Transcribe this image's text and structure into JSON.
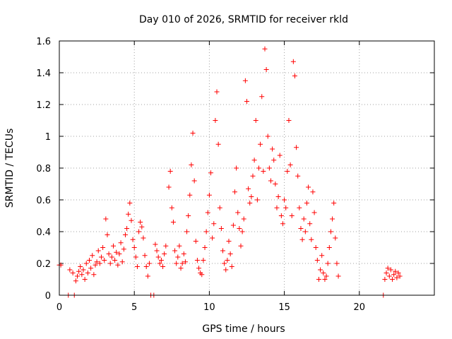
{
  "chart_data": {
    "type": "scatter",
    "title": "Day 010 of 2026, SRMTID for receiver rkld",
    "xlabel": "GPS time / hours",
    "ylabel": "SRMTID / TECUs",
    "xlim": [
      0,
      25
    ],
    "ylim": [
      0,
      1.6
    ],
    "xticks": [
      0,
      5,
      10,
      15,
      20
    ],
    "xtick_labels": [
      "0",
      "5",
      "10",
      "15",
      "20"
    ],
    "yticks": [
      0,
      0.2,
      0.4,
      0.6,
      0.8,
      1,
      1.2,
      1.4,
      1.6
    ],
    "ytick_labels": [
      "0",
      "0.2",
      "0.4",
      "0.6",
      "0.8",
      "1",
      "1.2",
      "1.4",
      "1.6"
    ],
    "grid": true,
    "marker": "+",
    "color": "#ff0000",
    "series": [
      {
        "name": "SRMTID",
        "points": [
          [
            0.0,
            0.19
          ],
          [
            0.1,
            0.19
          ],
          [
            0.6,
            0.0
          ],
          [
            0.7,
            0.16
          ],
          [
            0.9,
            0.14
          ],
          [
            1.0,
            0.0
          ],
          [
            1.1,
            0.09
          ],
          [
            1.2,
            0.12
          ],
          [
            1.3,
            0.15
          ],
          [
            1.4,
            0.18
          ],
          [
            1.5,
            0.13
          ],
          [
            1.6,
            0.16
          ],
          [
            1.7,
            0.1
          ],
          [
            1.8,
            0.2
          ],
          [
            1.9,
            0.14
          ],
          [
            2.0,
            0.22
          ],
          [
            2.1,
            0.17
          ],
          [
            2.2,
            0.25
          ],
          [
            2.3,
            0.13
          ],
          [
            2.4,
            0.19
          ],
          [
            2.5,
            0.21
          ],
          [
            2.6,
            0.28
          ],
          [
            2.7,
            0.2
          ],
          [
            2.8,
            0.24
          ],
          [
            2.9,
            0.3
          ],
          [
            3.0,
            0.22
          ],
          [
            3.1,
            0.48
          ],
          [
            3.2,
            0.38
          ],
          [
            3.3,
            0.26
          ],
          [
            3.4,
            0.2
          ],
          [
            3.5,
            0.24
          ],
          [
            3.6,
            0.31
          ],
          [
            3.7,
            0.22
          ],
          [
            3.8,
            0.27
          ],
          [
            3.9,
            0.19
          ],
          [
            4.0,
            0.26
          ],
          [
            4.1,
            0.33
          ],
          [
            4.2,
            0.21
          ],
          [
            4.3,
            0.29
          ],
          [
            4.4,
            0.38
          ],
          [
            4.5,
            0.42
          ],
          [
            4.6,
            0.51
          ],
          [
            4.7,
            0.58
          ],
          [
            4.8,
            0.47
          ],
          [
            4.9,
            0.35
          ],
          [
            5.0,
            0.3
          ],
          [
            5.1,
            0.24
          ],
          [
            5.2,
            0.18
          ],
          [
            5.3,
            0.4
          ],
          [
            5.4,
            0.46
          ],
          [
            5.5,
            0.43
          ],
          [
            5.6,
            0.36
          ],
          [
            5.7,
            0.25
          ],
          [
            5.8,
            0.18
          ],
          [
            5.9,
            0.12
          ],
          [
            6.0,
            0.2
          ],
          [
            6.1,
            0.0
          ],
          [
            6.3,
            0.0
          ],
          [
            6.4,
            0.32
          ],
          [
            6.5,
            0.28
          ],
          [
            6.6,
            0.24
          ],
          [
            6.7,
            0.2
          ],
          [
            6.8,
            0.22
          ],
          [
            6.9,
            0.18
          ],
          [
            7.0,
            0.26
          ],
          [
            7.1,
            0.31
          ],
          [
            7.3,
            0.68
          ],
          [
            7.4,
            0.78
          ],
          [
            7.5,
            0.55
          ],
          [
            7.6,
            0.46
          ],
          [
            7.7,
            0.28
          ],
          [
            7.8,
            0.2
          ],
          [
            7.9,
            0.24
          ],
          [
            8.0,
            0.31
          ],
          [
            8.1,
            0.17
          ],
          [
            8.2,
            0.2
          ],
          [
            8.3,
            0.26
          ],
          [
            8.4,
            0.21
          ],
          [
            8.5,
            0.4
          ],
          [
            8.6,
            0.5
          ],
          [
            8.7,
            0.63
          ],
          [
            8.8,
            0.82
          ],
          [
            8.9,
            1.02
          ],
          [
            9.0,
            0.72
          ],
          [
            9.1,
            0.34
          ],
          [
            9.2,
            0.22
          ],
          [
            9.3,
            0.17
          ],
          [
            9.4,
            0.14
          ],
          [
            9.5,
            0.13
          ],
          [
            9.6,
            0.22
          ],
          [
            9.7,
            0.3
          ],
          [
            9.8,
            0.4
          ],
          [
            9.9,
            0.52
          ],
          [
            10.0,
            0.63
          ],
          [
            10.1,
            0.77
          ],
          [
            10.2,
            0.36
          ],
          [
            10.3,
            0.45
          ],
          [
            10.4,
            1.1
          ],
          [
            10.5,
            1.28
          ],
          [
            10.6,
            0.95
          ],
          [
            10.7,
            0.55
          ],
          [
            10.8,
            0.42
          ],
          [
            10.9,
            0.28
          ],
          [
            11.0,
            0.2
          ],
          [
            11.1,
            0.16
          ],
          [
            11.2,
            0.22
          ],
          [
            11.3,
            0.34
          ],
          [
            11.4,
            0.26
          ],
          [
            11.5,
            0.18
          ],
          [
            11.6,
            0.44
          ],
          [
            11.7,
            0.65
          ],
          [
            11.8,
            0.8
          ],
          [
            11.9,
            0.52
          ],
          [
            12.0,
            0.42
          ],
          [
            12.1,
            0.31
          ],
          [
            12.2,
            0.4
          ],
          [
            12.3,
            0.48
          ],
          [
            12.4,
            1.35
          ],
          [
            12.5,
            1.22
          ],
          [
            12.6,
            0.67
          ],
          [
            12.7,
            0.58
          ],
          [
            12.8,
            0.62
          ],
          [
            12.9,
            0.75
          ],
          [
            13.0,
            0.85
          ],
          [
            13.1,
            1.1
          ],
          [
            13.2,
            0.6
          ],
          [
            13.3,
            0.8
          ],
          [
            13.4,
            0.95
          ],
          [
            13.5,
            1.25
          ],
          [
            13.6,
            0.78
          ],
          [
            13.7,
            1.55
          ],
          [
            13.8,
            1.42
          ],
          [
            13.9,
            1.0
          ],
          [
            14.0,
            0.8
          ],
          [
            14.1,
            0.72
          ],
          [
            14.2,
            0.92
          ],
          [
            14.3,
            0.85
          ],
          [
            14.4,
            0.7
          ],
          [
            14.5,
            0.55
          ],
          [
            14.6,
            0.62
          ],
          [
            14.7,
            0.88
          ],
          [
            14.8,
            0.5
          ],
          [
            14.9,
            0.45
          ],
          [
            15.0,
            0.6
          ],
          [
            15.1,
            0.55
          ],
          [
            15.2,
            0.78
          ],
          [
            15.3,
            1.1
          ],
          [
            15.4,
            0.82
          ],
          [
            15.5,
            0.5
          ],
          [
            15.6,
            1.47
          ],
          [
            15.7,
            1.38
          ],
          [
            15.8,
            0.93
          ],
          [
            15.9,
            0.75
          ],
          [
            16.0,
            0.55
          ],
          [
            16.1,
            0.42
          ],
          [
            16.2,
            0.35
          ],
          [
            16.3,
            0.48
          ],
          [
            16.4,
            0.4
          ],
          [
            16.5,
            0.58
          ],
          [
            16.6,
            0.68
          ],
          [
            16.7,
            0.45
          ],
          [
            16.8,
            0.35
          ],
          [
            16.9,
            0.65
          ],
          [
            17.0,
            0.52
          ],
          [
            17.1,
            0.3
          ],
          [
            17.2,
            0.22
          ],
          [
            17.3,
            0.1
          ],
          [
            17.4,
            0.16
          ],
          [
            17.5,
            0.25
          ],
          [
            17.6,
            0.14
          ],
          [
            17.7,
            0.1
          ],
          [
            17.8,
            0.12
          ],
          [
            17.9,
            0.2
          ],
          [
            18.0,
            0.3
          ],
          [
            18.1,
            0.4
          ],
          [
            18.2,
            0.48
          ],
          [
            18.3,
            0.58
          ],
          [
            18.4,
            0.36
          ],
          [
            18.5,
            0.2
          ],
          [
            18.6,
            0.12
          ],
          [
            21.6,
            0.0
          ],
          [
            21.7,
            0.1
          ],
          [
            21.8,
            0.14
          ],
          [
            21.9,
            0.17
          ],
          [
            22.0,
            0.12
          ],
          [
            22.1,
            0.16
          ],
          [
            22.2,
            0.1
          ],
          [
            22.3,
            0.13
          ],
          [
            22.4,
            0.15
          ],
          [
            22.5,
            0.11
          ],
          [
            22.6,
            0.14
          ],
          [
            22.7,
            0.12
          ]
        ]
      }
    ]
  }
}
